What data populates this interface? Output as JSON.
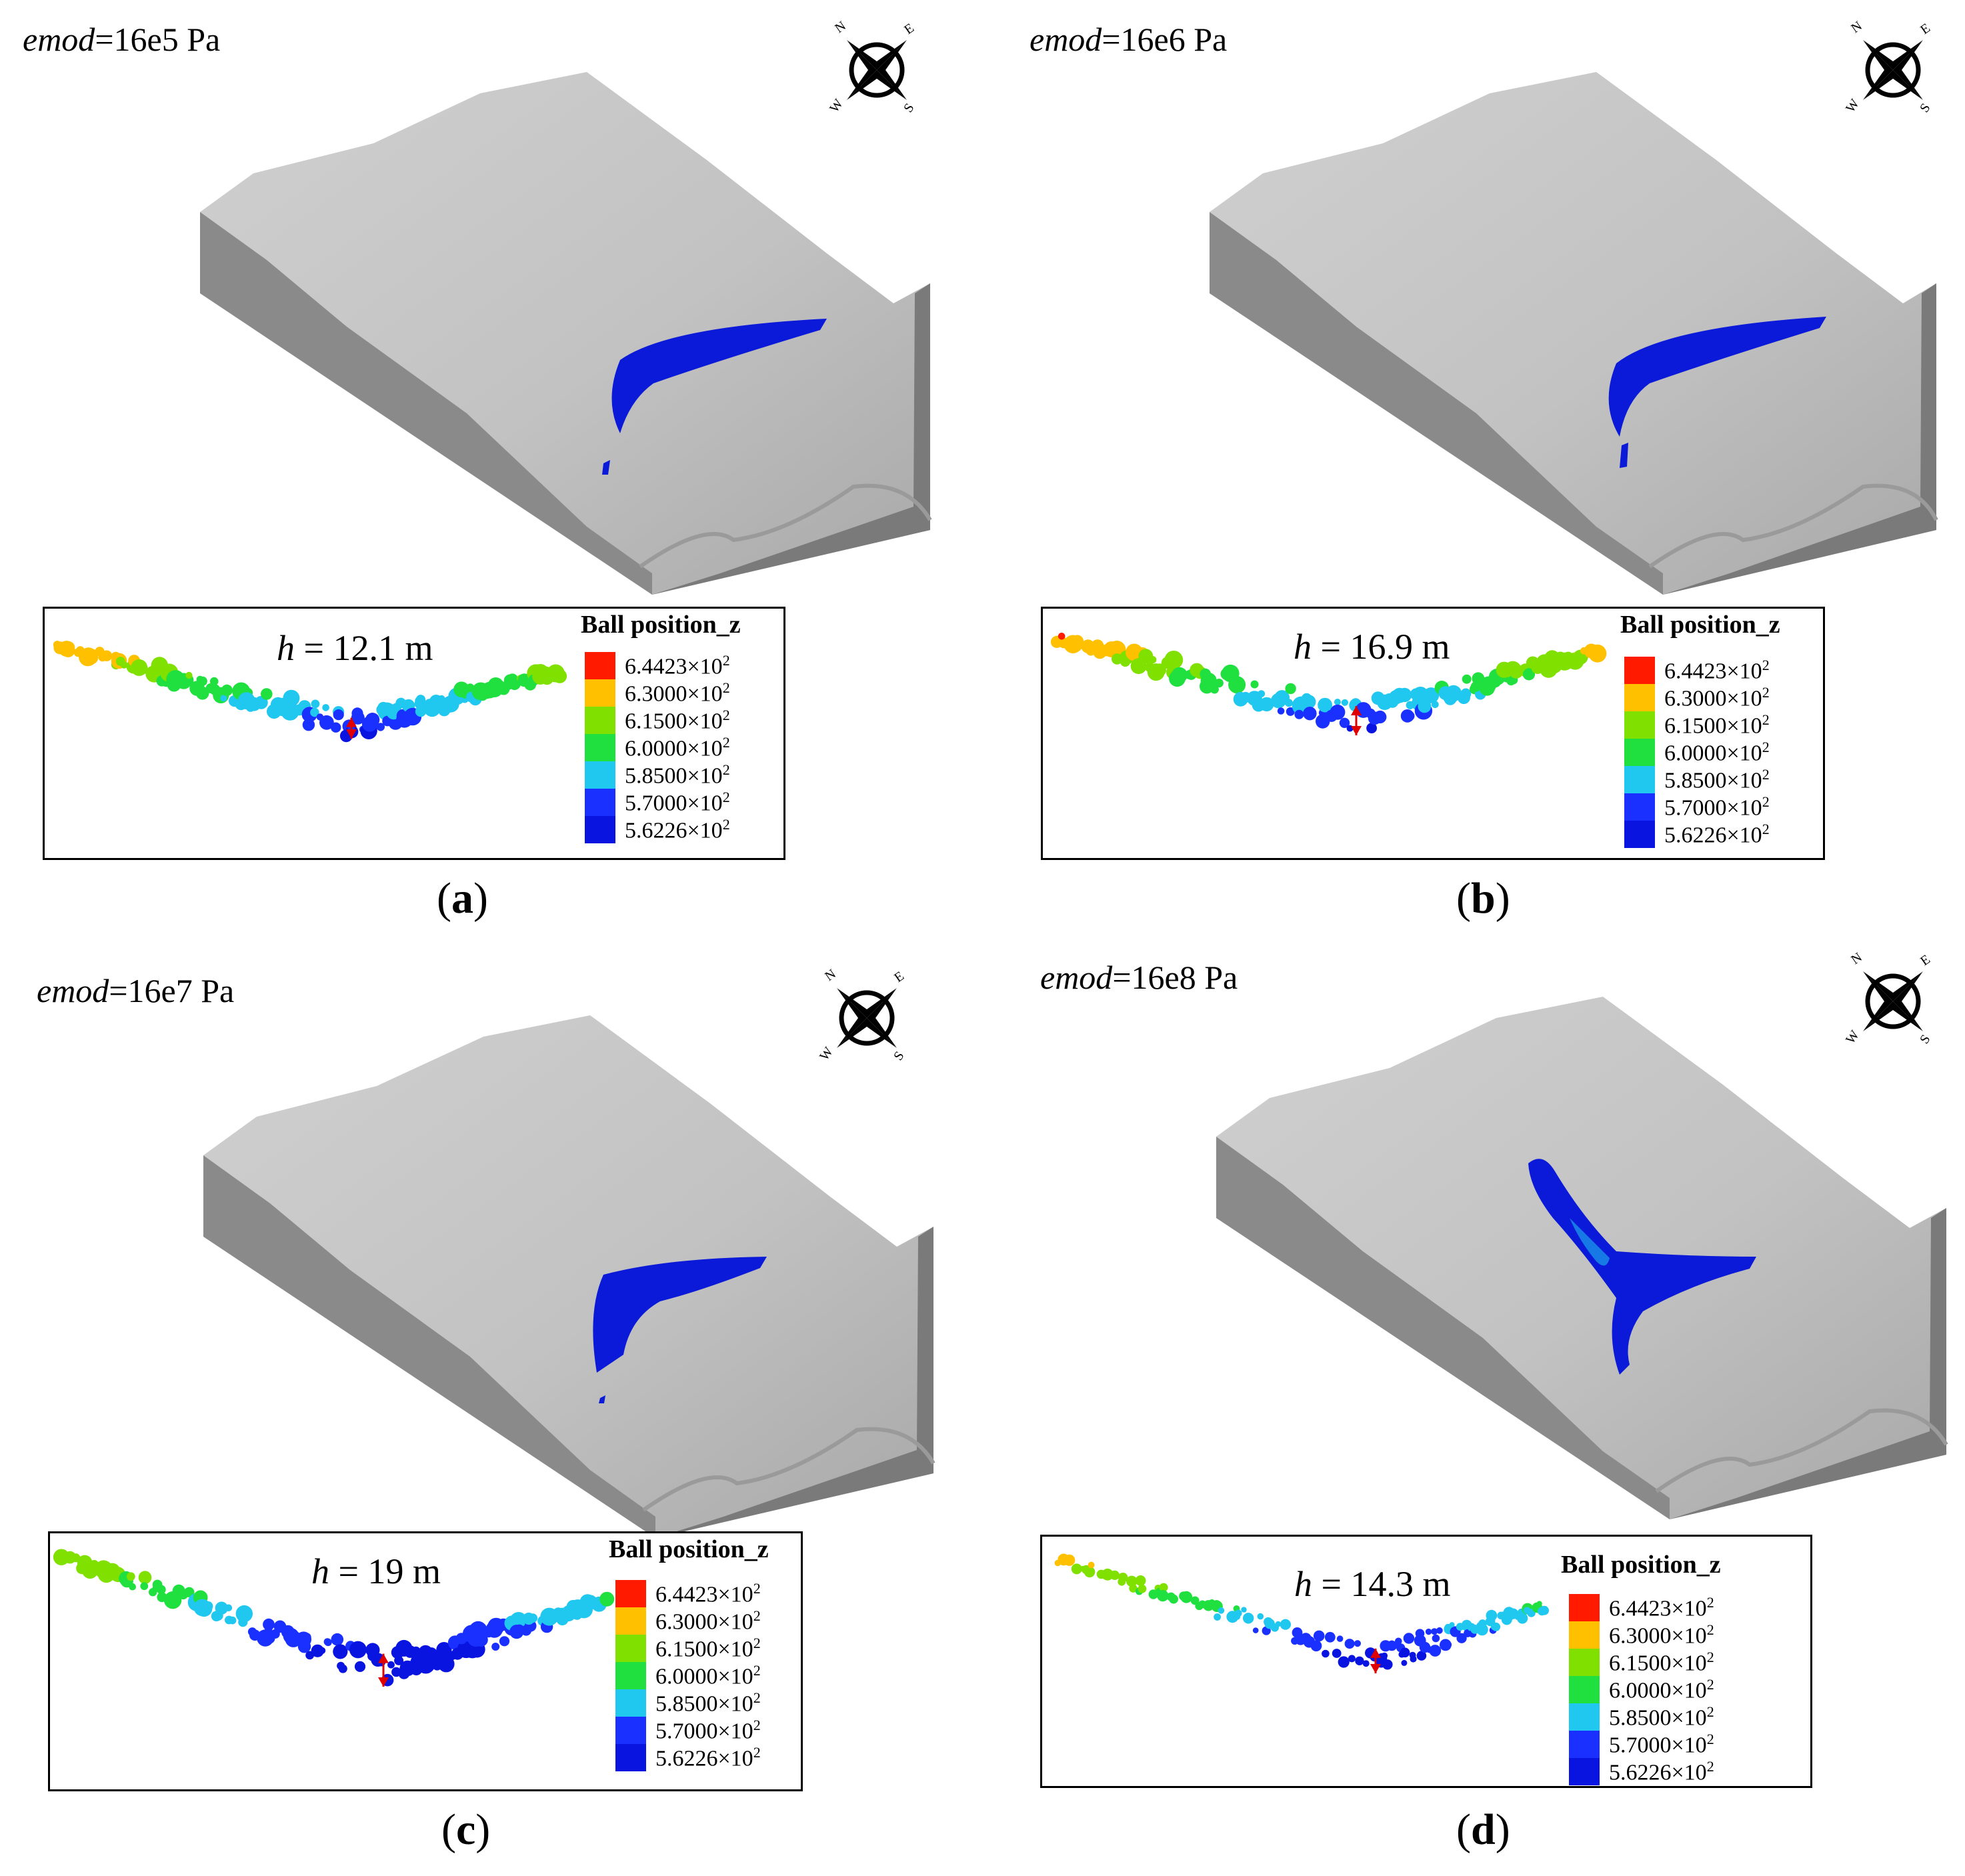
{
  "legend_colors": [
    "#ff1a00",
    "#ffc000",
    "#80e000",
    "#20e040",
    "#20c8f0",
    "#1a30ff",
    "#0a14e0"
  ],
  "particle_color": "#0a1ad8",
  "terrain_top_color": "#bfbfbf",
  "terrain_side_color": "#8a8a8a",
  "compass_letters": {
    "n": "N",
    "e": "E",
    "s": "S",
    "w": "W"
  },
  "panels": [
    {
      "emod_prefix": "emod",
      "emod_suffix": "=16e5 Pa",
      "h_prefix": "h",
      "h_suffix": " = 12.1 m",
      "legend_title": "Ball position_z",
      "legend_values": [
        "6.4423×10",
        "6.3000×10",
        "6.1500×10",
        "6.0000×10",
        "5.8500×10",
        "5.7000×10",
        "5.6226×10"
      ],
      "legend_exponent": "2",
      "caption": "a",
      "deposit": "single",
      "profile_depth_m": 12.1
    },
    {
      "emod_prefix": "emod",
      "emod_suffix": "=16e6 Pa",
      "h_prefix": "h",
      "h_suffix": " = 16.9 m",
      "legend_title": "Ball position_z",
      "legend_values": [
        "6.4423×10",
        "6.3000×10",
        "6.1500×10",
        "6.0000×10",
        "5.8500×10",
        "5.7000×10",
        "5.6226×10"
      ],
      "legend_exponent": "2",
      "caption": "b",
      "deposit": "single",
      "profile_depth_m": 16.9
    },
    {
      "emod_prefix": "emod",
      "emod_suffix": "=16e7 Pa",
      "h_prefix": "h",
      "h_suffix": " = 19 m",
      "legend_title": "Ball position_z",
      "legend_values": [
        "6.4423×10",
        "6.3000×10",
        "6.1500×10",
        "6.0000×10",
        "5.8500×10",
        "5.7000×10",
        "5.6226×10"
      ],
      "legend_exponent": "2",
      "caption": "c",
      "deposit": "wide",
      "profile_depth_m": 19
    },
    {
      "emod_prefix": "emod",
      "emod_suffix": "=16e8 Pa",
      "h_prefix": "h",
      "h_suffix": " = 14.3 m",
      "legend_title": "Ball position_z",
      "legend_values": [
        "6.4423×10",
        "6.3000×10",
        "6.1500×10",
        "6.0000×10",
        "5.8500×10",
        "5.7000×10",
        "5.6226×10"
      ],
      "legend_exponent": "2",
      "caption": "d",
      "deposit": "branched",
      "profile_depth_m": 14.3
    }
  ]
}
